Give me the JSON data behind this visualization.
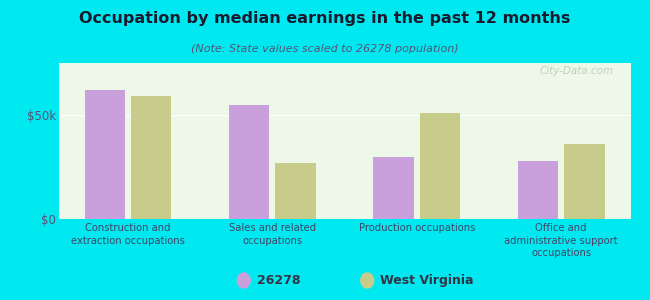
{
  "title": "Occupation by median earnings in the past 12 months",
  "subtitle": "(Note: State values scaled to 26278 population)",
  "categories": [
    "Construction and\nextraction occupations",
    "Sales and related\noccupations",
    "Production occupations",
    "Office and\nadministrative support\noccupations"
  ],
  "values_26278": [
    62000,
    55000,
    30000,
    28000
  ],
  "values_wv": [
    59000,
    27000,
    51000,
    36000
  ],
  "color_26278": "#c9a0dc",
  "color_wv": "#c8cc8a",
  "ylim": [
    0,
    75000
  ],
  "yticks": [
    0,
    50000
  ],
  "ytick_labels": [
    "$0",
    "$50k"
  ],
  "background_color": "#00e8f0",
  "plot_bg_start": "#eef8e8",
  "plot_bg_end": "#f5fdf0",
  "title_color": "#1a1a2e",
  "subtitle_color": "#555577",
  "legend_label_26278": "26278",
  "legend_label_wv": "West Virginia",
  "watermark": "City-Data.com"
}
